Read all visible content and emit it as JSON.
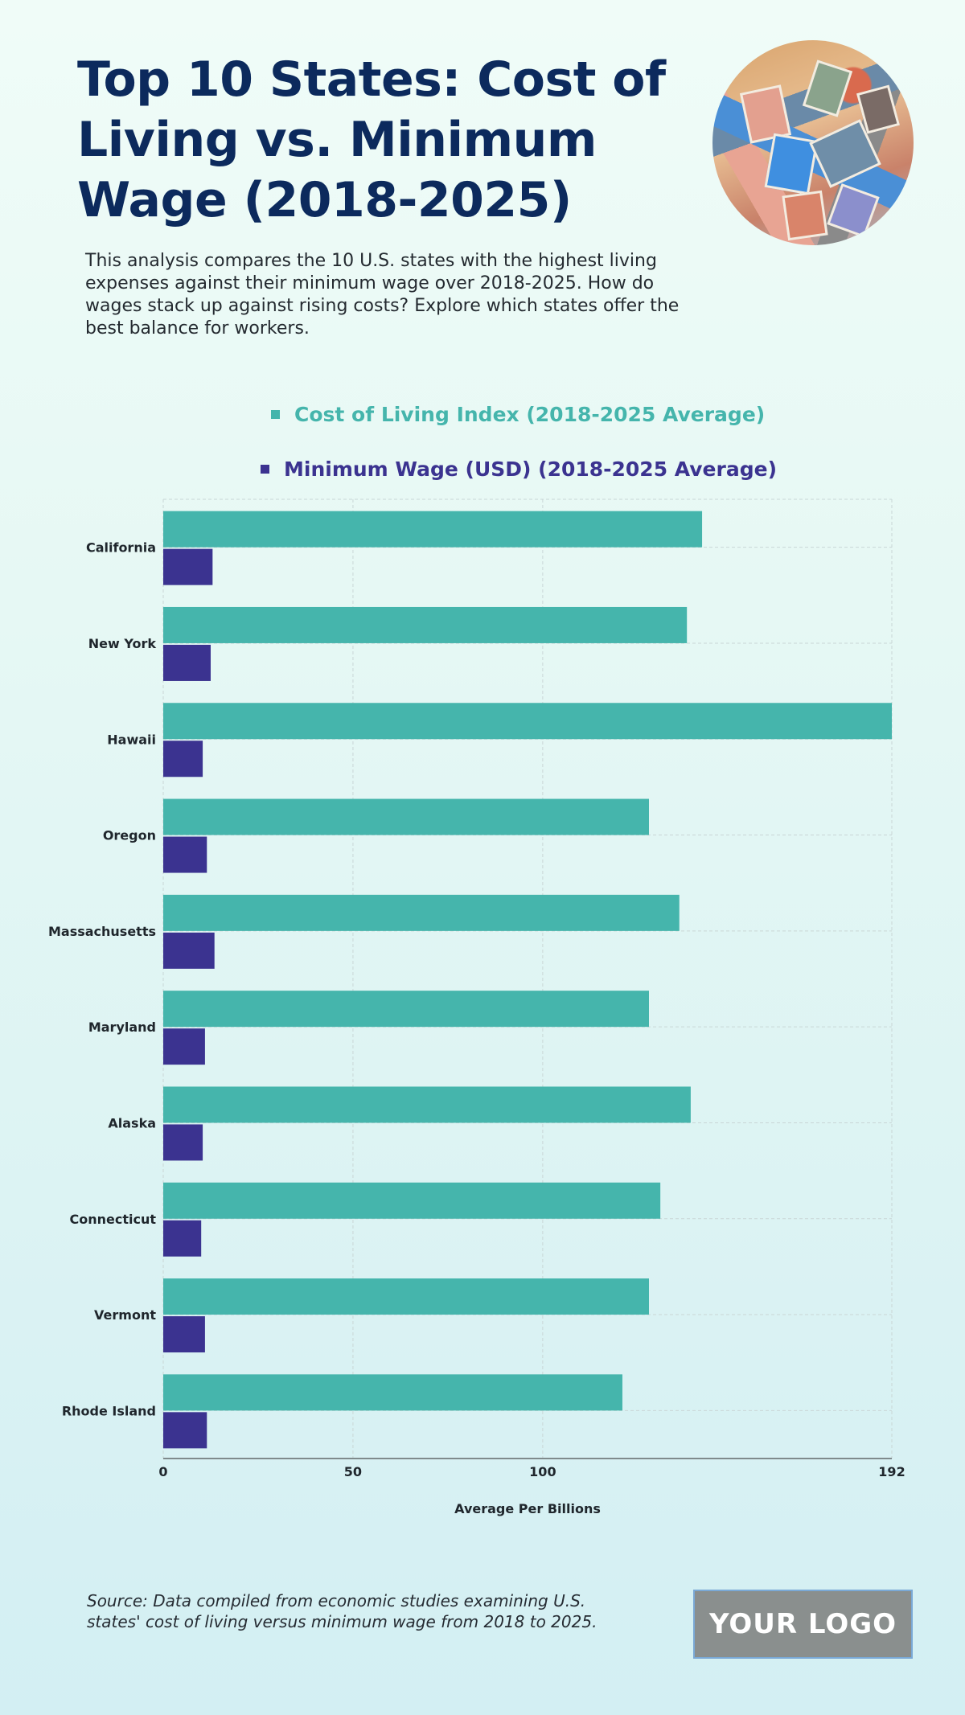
{
  "header": {
    "title": "Top 10 States: Cost of Living vs. Minimum Wage (2018-2025)",
    "description": "This analysis compares the 10 U.S. states with the highest living expenses against their minimum wage over 2018-2025. How do wages stack up against rising costs? Explore which states offer the best balance for workers.",
    "image_alt": "postage-stamps-photo"
  },
  "legend": [
    {
      "label": "Cost of Living Index (2018-2025 Average)",
      "color": "#45b5ac"
    },
    {
      "label": "Minimum Wage (USD) (2018-2025 Average)",
      "color": "#3b3390"
    }
  ],
  "chart_data": {
    "type": "bar",
    "orientation": "horizontal",
    "title": "Top 10 States: Cost of Living vs. Minimum Wage (2018-2025)",
    "categories": [
      "California",
      "New York",
      "Hawaii",
      "Oregon",
      "Massachusetts",
      "Maryland",
      "Alaska",
      "Connecticut",
      "Vermont",
      "Rhode Island"
    ],
    "series": [
      {
        "name": "Cost of Living Index (2018-2025 Average)",
        "color": "#45b5ac",
        "values": [
          142,
          138,
          192,
          128,
          136,
          128,
          139,
          131,
          128,
          121
        ]
      },
      {
        "name": "Minimum Wage (USD) (2018-2025 Average)",
        "color": "#3b3390",
        "values": [
          13.0,
          12.5,
          10.4,
          11.5,
          13.5,
          11.0,
          10.4,
          10.0,
          11.0,
          11.5
        ]
      }
    ],
    "xlabel": "Average Per Billions",
    "ylabel": "",
    "xlim": [
      0,
      192
    ],
    "xticks": [
      0,
      50,
      100,
      192
    ],
    "grid": true,
    "legend_position": "top"
  },
  "footer": {
    "source": "Source: Data compiled from economic studies examining U.S. states' cost of living versus minimum wage from 2018 to 2025.",
    "logo_text": "YOUR LOGO"
  }
}
